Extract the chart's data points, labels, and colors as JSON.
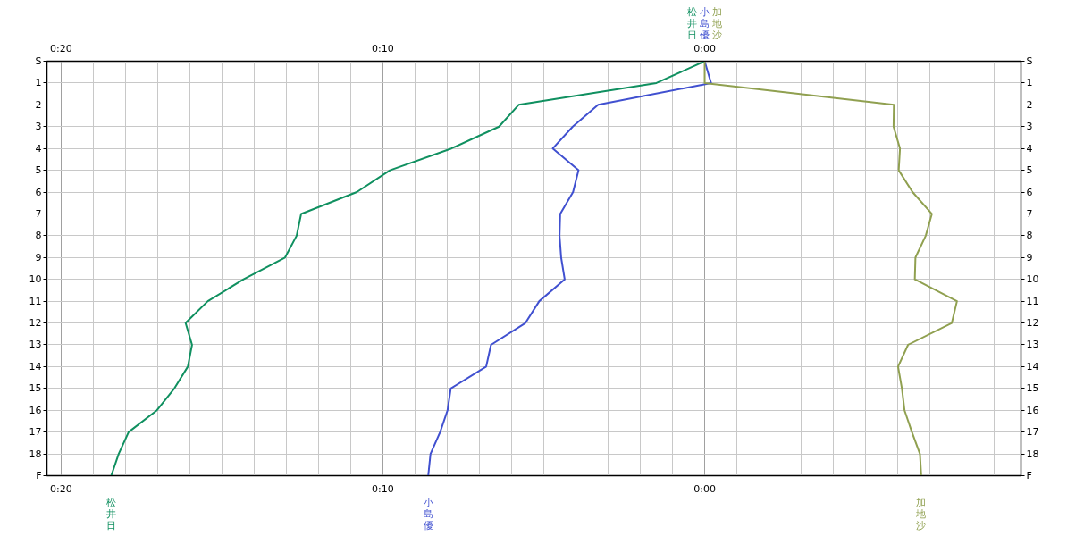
{
  "chart_data": {
    "type": "line",
    "orientation": "horizontal",
    "categories": [
      "S",
      "1",
      "2",
      "3",
      "4",
      "5",
      "6",
      "7",
      "8",
      "9",
      "10",
      "11",
      "12",
      "13",
      "14",
      "15",
      "16",
      "17",
      "18",
      "F"
    ],
    "xlim": [
      20.44,
      -9.83
    ],
    "xticks": [
      {
        "value": 20,
        "label": "0:20"
      },
      {
        "value": 19,
        "label": null
      },
      {
        "value": 18,
        "label": null
      },
      {
        "value": 17,
        "label": null
      },
      {
        "value": 16,
        "label": null
      },
      {
        "value": 15,
        "label": null
      },
      {
        "value": 14,
        "label": null
      },
      {
        "value": 13,
        "label": null
      },
      {
        "value": 12,
        "label": null
      },
      {
        "value": 11,
        "label": null
      },
      {
        "value": 10,
        "label": "0:10"
      },
      {
        "value": 9,
        "label": null
      },
      {
        "value": 8,
        "label": null
      },
      {
        "value": 7,
        "label": null
      },
      {
        "value": 6,
        "label": null
      },
      {
        "value": 5,
        "label": null
      },
      {
        "value": 4,
        "label": null
      },
      {
        "value": 3,
        "label": null
      },
      {
        "value": 2,
        "label": null
      },
      {
        "value": 1,
        "label": null
      },
      {
        "value": 0,
        "label": "0:00"
      },
      {
        "value": -1,
        "label": null
      },
      {
        "value": -2,
        "label": null
      },
      {
        "value": -3,
        "label": null
      },
      {
        "value": -4,
        "label": null
      },
      {
        "value": -5,
        "label": null
      },
      {
        "value": -6,
        "label": null
      },
      {
        "value": -7,
        "label": null
      },
      {
        "value": -8,
        "label": null
      },
      {
        "value": -9,
        "label": null
      }
    ],
    "x2lim": [
      20.44,
      -9.83
    ],
    "x2ticks": [
      {
        "value": 20,
        "label": "0:20"
      },
      {
        "value": 19,
        "label": null
      },
      {
        "value": 18,
        "label": null
      },
      {
        "value": 17,
        "label": null
      },
      {
        "value": 16,
        "label": null
      },
      {
        "value": 15,
        "label": null
      },
      {
        "value": 14,
        "label": null
      },
      {
        "value": 13,
        "label": null
      },
      {
        "value": 12,
        "label": null
      },
      {
        "value": 11,
        "label": null
      },
      {
        "value": 10,
        "label": "0:10"
      },
      {
        "value": 9,
        "label": null
      },
      {
        "value": 8,
        "label": null
      },
      {
        "value": 7,
        "label": null
      },
      {
        "value": 6,
        "label": null
      },
      {
        "value": 5,
        "label": null
      },
      {
        "value": 4,
        "label": null
      },
      {
        "value": 3,
        "label": null
      },
      {
        "value": 2,
        "label": null
      },
      {
        "value": 1,
        "label": null
      },
      {
        "value": 0,
        "label": "0:00"
      },
      {
        "value": -1,
        "label": null
      },
      {
        "value": -2,
        "label": null
      },
      {
        "value": -3,
        "label": null
      },
      {
        "value": -4,
        "label": null
      },
      {
        "value": -5,
        "label": null
      },
      {
        "value": -6,
        "label": null
      },
      {
        "value": -7,
        "label": null
      },
      {
        "value": -8,
        "label": null
      },
      {
        "value": -9,
        "label": null
      }
    ],
    "grid": true,
    "series": [
      {
        "name": "松井日",
        "color": "#109060",
        "values": [
          0,
          1.5,
          5.78,
          6.39,
          7.87,
          9.78,
          10.81,
          12.54,
          12.68,
          13.04,
          14.33,
          15.44,
          16.13,
          15.93,
          16.06,
          16.48,
          17.02,
          17.9,
          18.21,
          18.44
        ]
      },
      {
        "name": "小島優",
        "color": "#4050d0",
        "values": [
          0,
          -0.2,
          3.31,
          4.1,
          4.72,
          3.92,
          4.09,
          4.49,
          4.51,
          4.46,
          4.35,
          5.14,
          5.57,
          6.64,
          6.79,
          7.89,
          7.99,
          8.22,
          8.52,
          8.59
        ]
      },
      {
        "name": "加地沙",
        "color": "#90a050",
        "values": [
          0,
          0,
          -5.88,
          -5.87,
          -6.07,
          -6.03,
          -6.46,
          -7.06,
          -6.87,
          -6.55,
          -6.53,
          -7.84,
          -7.68,
          -6.32,
          -6.01,
          -6.13,
          -6.21,
          -6.44,
          -6.69,
          -6.73
        ]
      }
    ]
  }
}
